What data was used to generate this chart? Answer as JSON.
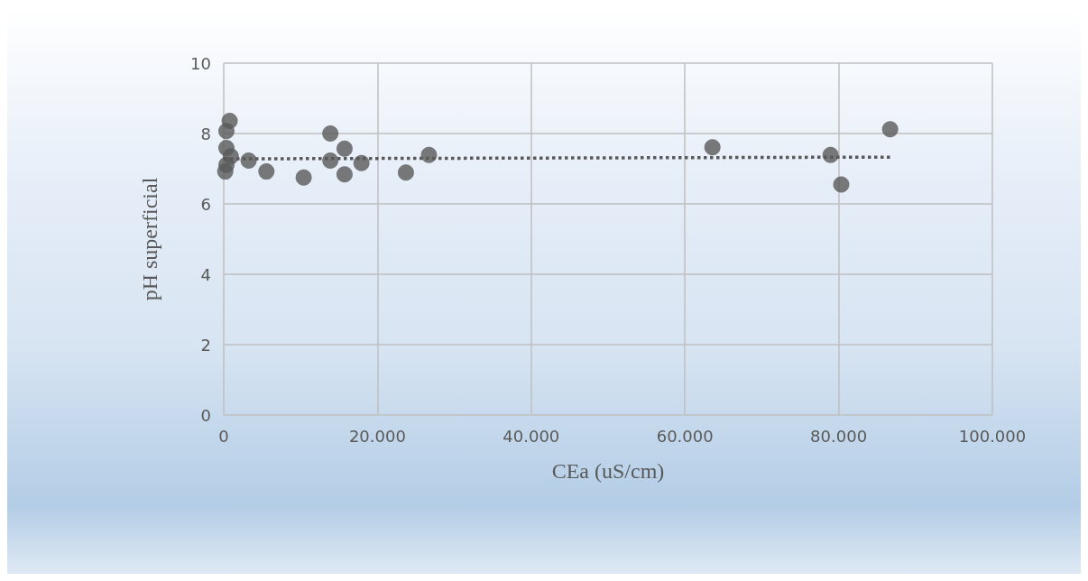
{
  "chart_data": {
    "type": "scatter",
    "xlabel": "CEa (uS/cm)",
    "ylabel": "pH superficial",
    "xlim": [
      0,
      100000
    ],
    "ylim": [
      0,
      10
    ],
    "xticks": [
      0,
      {
        "value": 20000,
        "label": "20.000"
      },
      {
        "value": 40000,
        "label": "40.000"
      },
      {
        "value": 60000,
        "label": "60.000"
      },
      {
        "value": 80000,
        "label": "80.000"
      },
      {
        "value": 100000,
        "label": "100.000"
      }
    ],
    "yticks": [
      0,
      2,
      4,
      6,
      8,
      10
    ],
    "grid": true,
    "marker": "circle",
    "series": [
      {
        "color": "#595959",
        "x": [
          770,
          350,
          350,
          920,
          200,
          350,
          3240,
          5550,
          10400,
          13870,
          13870,
          15720,
          15720,
          17920,
          23700,
          26700,
          63580,
          78950,
          80340,
          86700
        ],
        "values": [
          8.36,
          8.07,
          7.59,
          7.35,
          6.92,
          7.11,
          7.23,
          6.92,
          6.75,
          8.0,
          7.23,
          7.57,
          6.84,
          7.16,
          6.89,
          7.39,
          7.61,
          7.39,
          6.55,
          8.12
        ]
      },
      {
        "type": "line",
        "color": "#595959",
        "line_style": "dotted",
        "marker": "none",
        "x": [
          0,
          86700
        ],
        "values": [
          7.28,
          7.33
        ]
      }
    ]
  }
}
